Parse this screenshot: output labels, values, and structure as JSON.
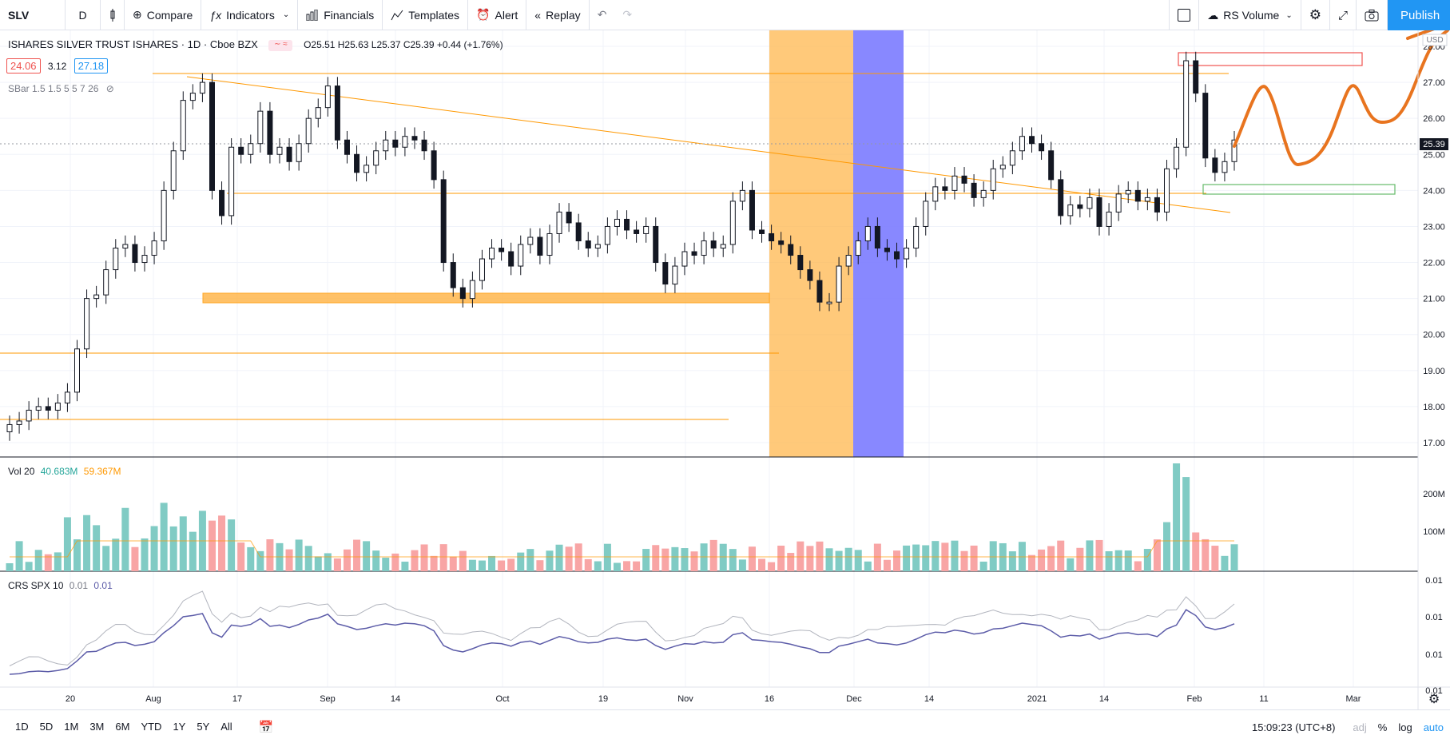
{
  "toolbar": {
    "symbol": "SLV",
    "interval": "D",
    "compare": "Compare",
    "indicators": "Indicators",
    "financials": "Financials",
    "templates": "Templates",
    "alert": "Alert",
    "replay": "Replay",
    "rs_volume": "RS Volume",
    "publish": "Publish"
  },
  "main_legend": {
    "title": "ISHARES SILVER TRUST ISHARES · 1D · Cboe BZX",
    "ohlc": "O25.51  H25.63  L25.37  C25.39 +0.44 (+1.76%)",
    "bid": "24.06",
    "spread": "3.12",
    "ask": "27.18",
    "sbar": "SBar 1.5 1.5 5 5 7 26"
  },
  "price_axis": {
    "labels": [
      "28.00",
      "27.00",
      "26.00",
      "25.00",
      "24.00",
      "23.00",
      "22.00",
      "21.00",
      "20.00",
      "19.00",
      "18.00",
      "17.00"
    ],
    "currency": "USD",
    "last_price": "25.39"
  },
  "volume": {
    "legend_name": "Vol 20",
    "value1": "40.683M",
    "value2": "59.367M",
    "axis_labels": [
      "200M",
      "100M"
    ]
  },
  "crs": {
    "legend_name": "CRS SPX 10",
    "value1": "0.01",
    "value2": "0.01",
    "axis_labels": [
      "0.01",
      "0.01",
      "0.01",
      "0.01"
    ]
  },
  "time_axis": {
    "labels": [
      "20",
      "Aug",
      "17",
      "Sep",
      "14",
      "Oct",
      "19",
      "Nov",
      "16",
      "Dec",
      "14",
      "2021",
      "14",
      "Feb",
      "11",
      "Mar"
    ]
  },
  "bottombar": {
    "ranges": [
      "1D",
      "5D",
      "1M",
      "3M",
      "6M",
      "YTD",
      "1Y",
      "5Y",
      "All"
    ],
    "time": "15:09:23 (UTC+8)",
    "adj": "adj",
    "percent": "%",
    "log": "log",
    "auto": "auto"
  },
  "colors": {
    "orange": "#ff9800",
    "blue_zone": "#7b7bff",
    "up_volume": "#26a69a",
    "down_volume": "#ef5350",
    "accent": "#2196f3"
  }
}
